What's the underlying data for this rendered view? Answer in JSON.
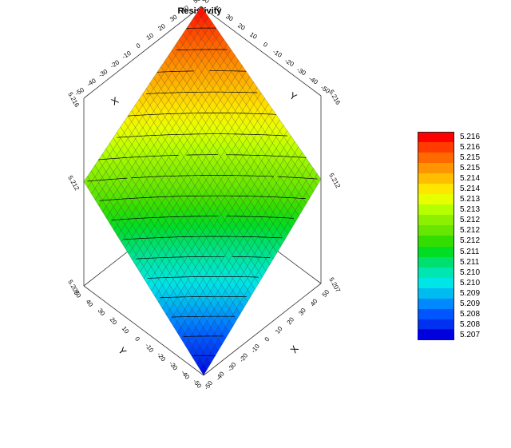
{
  "chart_data": {
    "type": "surface",
    "title": "Resistivity",
    "x_axis": {
      "label": "X",
      "ticks": [
        "-50",
        "-40",
        "-30",
        "-20",
        "-10",
        "0",
        "10",
        "20",
        "30",
        "40",
        "50"
      ]
    },
    "y_axis": {
      "label": "Y",
      "ticks": [
        "-50",
        "-40",
        "-30",
        "-20",
        "-10",
        "0",
        "10",
        "20",
        "30",
        "40",
        "50"
      ]
    },
    "z_axis": {
      "ticks": [
        "5.207",
        "5.212",
        "5.216"
      ]
    },
    "z_range": [
      5.207,
      5.216
    ],
    "surface_corners": [
      {
        "x": -50,
        "y": -50,
        "z": 5.207
      },
      {
        "x": 50,
        "y": -50,
        "z": 5.212
      },
      {
        "x": -50,
        "y": 50,
        "z": 5.212
      },
      {
        "x": 50,
        "y": 50,
        "z": 5.216
      }
    ],
    "legend": {
      "labels": [
        "5.216",
        "5.216",
        "5.215",
        "5.215",
        "5.214",
        "5.214",
        "5.213",
        "5.213",
        "5.212",
        "5.212",
        "5.212",
        "5.211",
        "5.211",
        "5.210",
        "5.210",
        "5.209",
        "5.209",
        "5.208",
        "5.208",
        "5.207"
      ],
      "colors": [
        "#ff0000",
        "#ff3b00",
        "#ff6a00",
        "#ff9500",
        "#ffbe00",
        "#ffe600",
        "#e8ff00",
        "#b6ff00",
        "#8cf000",
        "#66e600",
        "#33dd00",
        "#00dd22",
        "#00e070",
        "#00e6b0",
        "#00e6e6",
        "#00bbf0",
        "#0088ff",
        "#0055ff",
        "#0030f0",
        "#0000dd"
      ]
    }
  }
}
